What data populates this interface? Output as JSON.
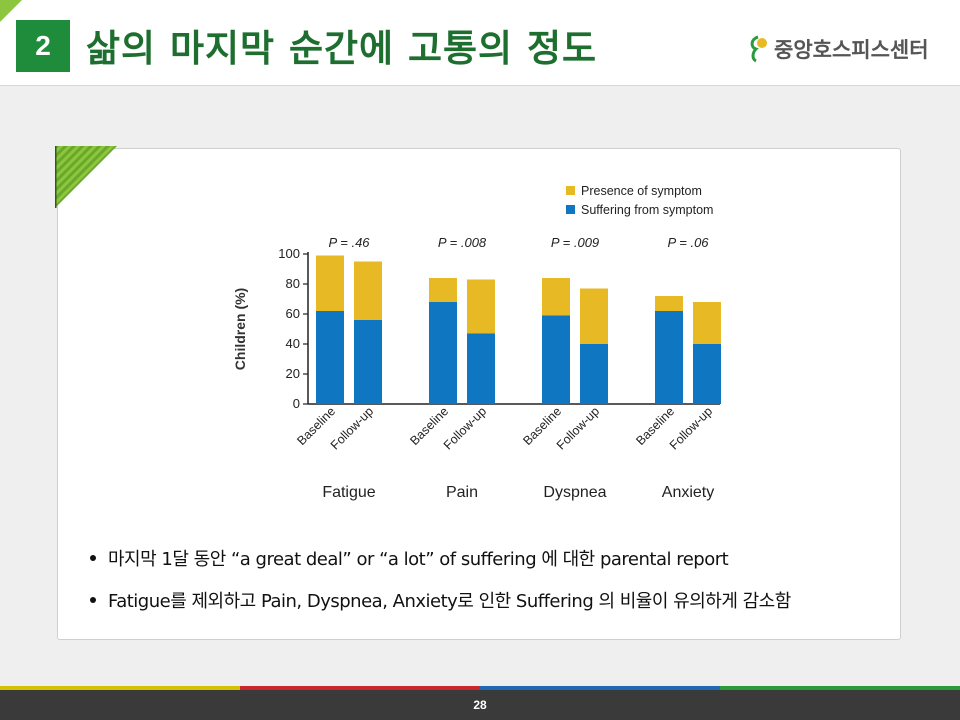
{
  "header": {
    "section_number": "2",
    "title": "삶의 마지막 순간에 고통의 정도",
    "logo_text": "중앙호스피스센터"
  },
  "chart_data": {
    "type": "bar",
    "stacked": true,
    "ylabel": "Children (%)",
    "ylim": [
      0,
      100
    ],
    "yticks": [
      0,
      20,
      40,
      60,
      80,
      100
    ],
    "bar_labels": [
      "Baseline",
      "Follow-up"
    ],
    "groups": [
      {
        "name": "Fatigue",
        "p": "P = .46",
        "values": [
          {
            "suffering": 62,
            "presence": 99
          },
          {
            "suffering": 56,
            "presence": 95
          }
        ]
      },
      {
        "name": "Pain",
        "p": "P = .008",
        "values": [
          {
            "suffering": 68,
            "presence": 84
          },
          {
            "suffering": 47,
            "presence": 83
          }
        ]
      },
      {
        "name": "Dyspnea",
        "p": "P = .009",
        "values": [
          {
            "suffering": 59,
            "presence": 84
          },
          {
            "suffering": 40,
            "presence": 77
          }
        ]
      },
      {
        "name": "Anxiety",
        "p": "P = .06",
        "values": [
          {
            "suffering": 62,
            "presence": 72
          },
          {
            "suffering": 40,
            "presence": 68
          }
        ]
      }
    ],
    "series": [
      {
        "name": "Presence of symptom",
        "color": "#e7b924"
      },
      {
        "name": "Suffering from symptom",
        "color": "#0f77c2"
      }
    ],
    "legend_position": "top-right",
    "grid": false
  },
  "bullets": [
    "마지막 1달 동안 “a great deal” or “a lot” of suffering 에 대한 parental report",
    "Fatigue를 제외하고 Pain, Dyspnea, Anxiety로 인한 Suffering 의 비율이 유의하게 감소함"
  ],
  "footer": {
    "page_number": "28",
    "stripe_colors": [
      "#d6c100",
      "#c8262c",
      "#1e69b5",
      "#2c9a3b"
    ]
  }
}
